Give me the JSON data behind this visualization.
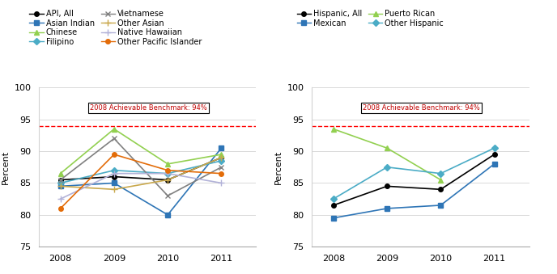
{
  "years": [
    2008,
    2009,
    2010,
    2011
  ],
  "benchmark": 94,
  "benchmark_label": "2008 Achievable Benchmark: 94%",
  "left_chart": {
    "series": [
      {
        "label": "API, All",
        "color": "#000000",
        "marker": "o",
        "linestyle": "-",
        "values": [
          85.5,
          86.0,
          85.5,
          89.0
        ]
      },
      {
        "label": "Asian Indian",
        "color": "#2E75B6",
        "marker": "s",
        "linestyle": "-",
        "values": [
          84.5,
          85.0,
          80.0,
          90.5
        ]
      },
      {
        "label": "Chinese",
        "color": "#92D050",
        "marker": "^",
        "linestyle": "-",
        "values": [
          86.5,
          93.5,
          88.0,
          89.5
        ]
      },
      {
        "label": "Filipino",
        "color": "#4BACC6",
        "marker": "D",
        "linestyle": "-",
        "values": [
          85.0,
          87.0,
          86.5,
          88.5
        ]
      },
      {
        "label": "Vietnamese",
        "color": "#808080",
        "marker": "x",
        "linestyle": "-",
        "values": [
          85.5,
          92.0,
          83.0,
          87.5
        ]
      },
      {
        "label": "Other Asian",
        "color": "#C9A84C",
        "marker": "+",
        "linestyle": "-",
        "values": [
          84.5,
          84.0,
          85.5,
          89.0
        ]
      },
      {
        "label": "Native Hawaiian",
        "color": "#B2B2D8",
        "marker": "+",
        "linestyle": "-",
        "values": [
          82.5,
          86.5,
          86.5,
          85.0
        ]
      },
      {
        "label": "Other Pacific Islander",
        "color": "#E36C09",
        "marker": "o",
        "linestyle": "-",
        "values": [
          81.0,
          89.5,
          87.0,
          86.5
        ]
      }
    ]
  },
  "right_chart": {
    "series": [
      {
        "label": "Hispanic, All",
        "color": "#000000",
        "marker": "o",
        "linestyle": "-",
        "values": [
          81.5,
          84.5,
          84.0,
          89.5
        ]
      },
      {
        "label": "Mexican",
        "color": "#2E75B6",
        "marker": "s",
        "linestyle": "-",
        "values": [
          79.5,
          81.0,
          81.5,
          88.0
        ]
      },
      {
        "label": "Puerto Rican",
        "color": "#92D050",
        "marker": "^",
        "linestyle": "-",
        "values": [
          93.5,
          90.5,
          85.5,
          null
        ]
      },
      {
        "label": "Other Hispanic",
        "color": "#4BACC6",
        "marker": "D",
        "linestyle": "-",
        "values": [
          82.5,
          87.5,
          86.5,
          90.5
        ]
      }
    ]
  },
  "ylim": [
    75,
    100
  ],
  "yticks": [
    75,
    80,
    85,
    90,
    95,
    100
  ],
  "ylabel": "Percent"
}
